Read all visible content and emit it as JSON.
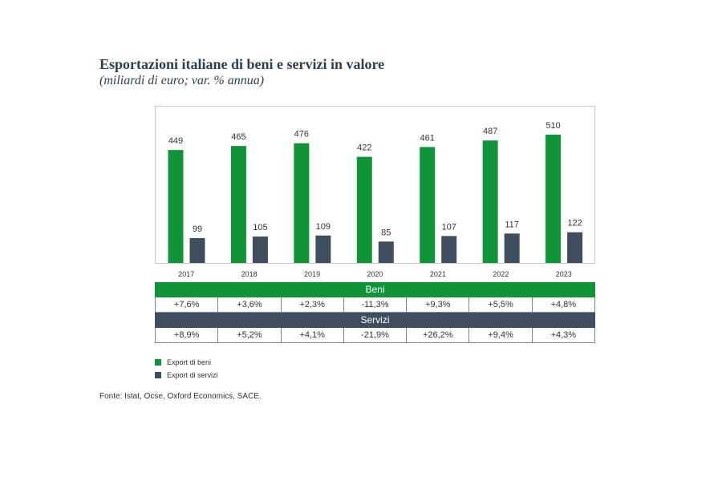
{
  "title": "Esportazioni italiane di beni e servizi in valore",
  "subtitle": "(miliardi di euro; var. % annua)",
  "chart_data": {
    "type": "bar",
    "categories": [
      "2017",
      "2018",
      "2019",
      "2020",
      "2021",
      "2022",
      "2023"
    ],
    "series": [
      {
        "name": "Export di beni",
        "values": [
          449,
          465,
          476,
          422,
          461,
          487,
          510
        ],
        "color": "#0f9438"
      },
      {
        "name": "Export di servizi",
        "values": [
          99,
          105,
          109,
          85,
          107,
          117,
          122
        ],
        "color": "#3e4e5f"
      }
    ],
    "ylim": [
      0,
      560
    ],
    "grid": false,
    "legend_position": "bottom-left"
  },
  "table": {
    "beni_label": "Beni",
    "beni_changes": [
      "+7,6%",
      "+3,6%",
      "+2,3%",
      "-11,3%",
      "+9,3%",
      "+5,5%",
      "+4,8%"
    ],
    "servizi_label": "Servizi",
    "servizi_changes": [
      "+8,9%",
      "+5,2%",
      "+4,1%",
      "-21,9%",
      "+26,2%",
      "+9,4%",
      "+4,3%"
    ]
  },
  "legend": {
    "beni": "Export di beni",
    "servizi": "Export di servizi"
  },
  "source": "Fonte: Istat, Ocse, Oxford Economics, SACE."
}
